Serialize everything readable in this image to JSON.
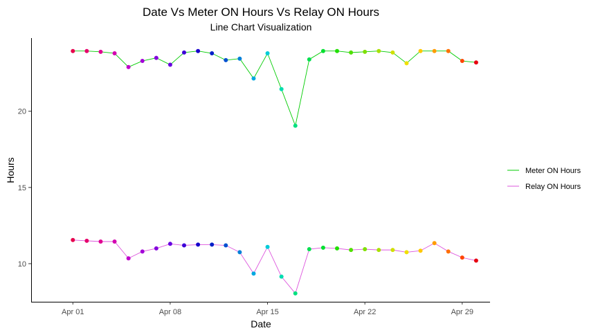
{
  "chart_data": {
    "type": "line",
    "title": "Date Vs Meter ON Hours Vs Relay ON Hours",
    "subtitle": "Line Chart Visualization",
    "xlabel": "Date",
    "ylabel": "Hours",
    "x": [
      "2023-04-01",
      "2023-04-02",
      "2023-04-03",
      "2023-04-04",
      "2023-04-05",
      "2023-04-06",
      "2023-04-07",
      "2023-04-08",
      "2023-04-09",
      "2023-04-10",
      "2023-04-11",
      "2023-04-12",
      "2023-04-13",
      "2023-04-14",
      "2023-04-15",
      "2023-04-16",
      "2023-04-17",
      "2023-04-18",
      "2023-04-19",
      "2023-04-20",
      "2023-04-21",
      "2023-04-22",
      "2023-04-23",
      "2023-04-24",
      "2023-04-25",
      "2023-04-26",
      "2023-04-27",
      "2023-04-28",
      "2023-04-29",
      "2023-04-30"
    ],
    "x_tick_labels": [
      "Apr 01",
      "Apr 08",
      "Apr 15",
      "Apr 22",
      "Apr 29"
    ],
    "x_tick_dates": [
      "2023-04-01",
      "2023-04-08",
      "2023-04-15",
      "2023-04-22",
      "2023-04-29"
    ],
    "xlim": [
      "2023-03-29",
      "2023-05-01"
    ],
    "ylim": [
      7.5,
      24.8
    ],
    "y_ticks": [
      10,
      15,
      20
    ],
    "y_tick_labels": [
      "10",
      "15",
      "20"
    ],
    "grid": false,
    "legend_position": "right",
    "series": [
      {
        "name": "Meter ON Hours",
        "color": "#00cc00",
        "values": [
          23.95,
          23.95,
          23.9,
          23.8,
          22.9,
          23.3,
          23.5,
          23.05,
          23.85,
          23.95,
          23.8,
          23.35,
          23.45,
          22.15,
          23.8,
          21.45,
          19.05,
          23.4,
          23.95,
          23.95,
          23.85,
          23.9,
          23.95,
          23.85,
          23.15,
          23.95,
          23.95,
          23.95,
          23.3,
          23.2
        ]
      },
      {
        "name": "Relay ON Hours",
        "color": "#dd55dd",
        "values": [
          11.55,
          11.5,
          11.45,
          11.45,
          10.35,
          10.8,
          11.0,
          11.3,
          11.2,
          11.25,
          11.25,
          11.2,
          10.75,
          9.35,
          11.1,
          9.15,
          8.05,
          10.95,
          11.05,
          11.0,
          10.9,
          10.95,
          10.9,
          10.9,
          10.75,
          10.85,
          11.35,
          10.8,
          10.4,
          10.2
        ]
      }
    ],
    "point_colors": [
      "#e6004c",
      "#e6006b",
      "#e00090",
      "#d400b0",
      "#c000cc",
      "#a300d8",
      "#8400dd",
      "#6600e0",
      "#3d00d8",
      "#1600cc",
      "#0020c8",
      "#0050d0",
      "#0080d8",
      "#00a8e0",
      "#00ccd8",
      "#00ddb0",
      "#00e080",
      "#00e050",
      "#00e030",
      "#20e000",
      "#50e000",
      "#7ee000",
      "#a8e000",
      "#d0e000",
      "#f0e000",
      "#ffc800",
      "#ff9c00",
      "#ff7000",
      "#ff4400",
      "#e60010"
    ]
  }
}
